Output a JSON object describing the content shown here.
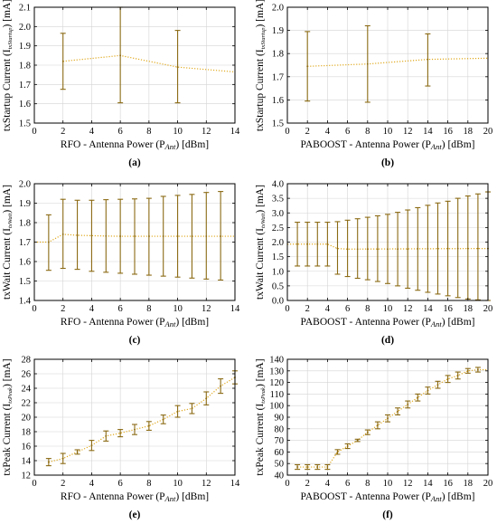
{
  "colors": {
    "series": "#8B6A14",
    "fit": "#E0A81C",
    "grid": "#d4d4d4",
    "frame": "#000000"
  },
  "chart_data": [
    {
      "type": "line",
      "panel_label": "(a)",
      "ylabel": "txStartup Current (I",
      "ylabel_sub": "txStartup",
      "ylabel_tail": ") [mA]",
      "xlabel": "RFO - Antenna Power (P",
      "xlabel_sub": "Ant",
      "xlabel_tail": ") [dBm]",
      "xlim": [
        0,
        14
      ],
      "xticks": [
        0,
        2,
        4,
        6,
        8,
        10,
        12,
        14
      ],
      "xticklabels": [
        "0",
        "2",
        "4",
        "6",
        "8",
        "10",
        "12",
        "14"
      ],
      "ylim": [
        1.5,
        2.1
      ],
      "yticks": [
        1.5,
        1.6,
        1.7,
        1.8,
        1.9,
        2.0,
        2.1
      ],
      "yticklabels": [
        "1.5",
        "1.6",
        "1.7",
        "1.8",
        "1.9",
        "2.0",
        "2.1"
      ],
      "grid": true,
      "series": [
        {
          "x": [
            2,
            6,
            10
          ],
          "y": [
            1.82,
            1.85,
            1.79
          ],
          "err_low": [
            1.675,
            1.605,
            1.605
          ],
          "err_high": [
            1.965,
            2.1,
            1.98
          ]
        }
      ],
      "trend": {
        "x": [
          2,
          6,
          10,
          14
        ],
        "y": [
          1.82,
          1.85,
          1.79,
          1.765
        ]
      }
    },
    {
      "type": "line",
      "panel_label": "(b)",
      "ylabel": "txStartup Current (I",
      "ylabel_sub": "txStartup",
      "ylabel_tail": ") [mA]",
      "xlabel": "PABOOST - Antenna Power (P",
      "xlabel_sub": "Ant",
      "xlabel_tail": ") [dBm]",
      "xlim": [
        0,
        20
      ],
      "xticks": [
        0,
        2,
        4,
        6,
        8,
        10,
        12,
        14,
        16,
        18,
        20
      ],
      "xticklabels": [
        "0",
        "2",
        "4",
        "6",
        "8",
        "10",
        "12",
        "14",
        "16",
        "18",
        "20"
      ],
      "ylim": [
        1.5,
        2.0
      ],
      "yticks": [
        1.5,
        1.6,
        1.7,
        1.8,
        1.9,
        2.0
      ],
      "yticklabels": [
        "1.5",
        "1.6",
        "1.7",
        "1.8",
        "1.9",
        "2.0"
      ],
      "grid": true,
      "series": [
        {
          "x": [
            2,
            8,
            14
          ],
          "y": [
            1.745,
            1.755,
            1.775
          ],
          "err_low": [
            1.595,
            1.59,
            1.66
          ],
          "err_high": [
            1.895,
            1.92,
            1.885
          ]
        }
      ],
      "trend": {
        "x": [
          2,
          8,
          14,
          20
        ],
        "y": [
          1.745,
          1.755,
          1.775,
          1.78
        ]
      }
    },
    {
      "type": "line",
      "panel_label": "(c)",
      "ylabel": "txWait Current (I",
      "ylabel_sub": "txWait",
      "ylabel_tail": ") [mA]",
      "xlabel": "RFO - Antenna Power (P",
      "xlabel_sub": "Ant",
      "xlabel_tail": ") [dBm]",
      "xlim": [
        0,
        14
      ],
      "xticks": [
        0,
        2,
        4,
        6,
        8,
        10,
        12,
        14
      ],
      "xticklabels": [
        "0",
        "2",
        "4",
        "6",
        "8",
        "10",
        "12",
        "14"
      ],
      "ylim": [
        1.4,
        2.0
      ],
      "yticks": [
        1.4,
        1.5,
        1.6,
        1.7,
        1.8,
        1.9,
        2.0
      ],
      "yticklabels": [
        "1.4",
        "1.5",
        "1.6",
        "1.7",
        "1.8",
        "1.9",
        "2.0"
      ],
      "grid": true,
      "series": [
        {
          "x": [
            1,
            2,
            3,
            4,
            5,
            6,
            7,
            8,
            9,
            10,
            11,
            12,
            13
          ],
          "y": [
            1.7,
            1.74,
            1.735,
            1.733,
            1.731,
            1.73,
            1.73,
            1.73,
            1.73,
            1.73,
            1.73,
            1.73,
            1.73
          ],
          "err_low": [
            1.555,
            1.565,
            1.56,
            1.55,
            1.545,
            1.54,
            1.535,
            1.53,
            1.525,
            1.52,
            1.515,
            1.51,
            1.505
          ],
          "err_high": [
            1.84,
            1.92,
            1.915,
            1.915,
            1.918,
            1.92,
            1.922,
            1.925,
            1.935,
            1.94,
            1.945,
            1.955,
            1.96
          ]
        }
      ],
      "trend": {
        "x": [
          0,
          1,
          2,
          3,
          4,
          5,
          6,
          7,
          8,
          9,
          10,
          11,
          12,
          13,
          14
        ],
        "y": [
          1.7,
          1.7,
          1.74,
          1.735,
          1.733,
          1.731,
          1.73,
          1.73,
          1.73,
          1.73,
          1.73,
          1.73,
          1.73,
          1.73,
          1.73
        ]
      }
    },
    {
      "type": "line",
      "panel_label": "(d)",
      "ylabel": "txWait Current (I",
      "ylabel_sub": "txWait",
      "ylabel_tail": ") [mA]",
      "xlabel": "PABOOST - Antenna Power (P",
      "xlabel_sub": "Ant",
      "xlabel_tail": ") [dBm]",
      "xlim": [
        0,
        20
      ],
      "xticks": [
        0,
        2,
        4,
        6,
        8,
        10,
        12,
        14,
        16,
        18,
        20
      ],
      "xticklabels": [
        "0",
        "2",
        "4",
        "6",
        "8",
        "10",
        "12",
        "14",
        "16",
        "18",
        "20"
      ],
      "ylim": [
        0.0,
        4.0
      ],
      "yticks": [
        0.0,
        0.5,
        1.0,
        1.5,
        2.0,
        2.5,
        3.0,
        3.5,
        4.0
      ],
      "yticklabels": [
        "0.0",
        "0.5",
        "1.0",
        "1.5",
        "2.0",
        "2.5",
        "3.0",
        "3.5",
        "4.0"
      ],
      "grid": true,
      "series": [
        {
          "x": [
            1,
            2,
            3,
            4,
            5,
            6,
            7,
            8,
            9,
            10,
            11,
            12,
            13,
            14,
            15,
            16,
            17,
            18,
            19,
            20
          ],
          "y": [
            1.93,
            1.93,
            1.93,
            1.93,
            1.78,
            1.76,
            1.76,
            1.76,
            1.76,
            1.76,
            1.76,
            1.76,
            1.77,
            1.77,
            1.78,
            1.78,
            1.78,
            1.78,
            1.78,
            1.78
          ],
          "err_low": [
            1.18,
            1.18,
            1.18,
            1.18,
            0.9,
            0.82,
            0.76,
            0.71,
            0.65,
            0.58,
            0.5,
            0.42,
            0.35,
            0.28,
            0.22,
            0.16,
            0.1,
            0.05,
            0.02,
            0.0
          ],
          "err_high": [
            2.68,
            2.68,
            2.68,
            2.68,
            2.7,
            2.75,
            2.8,
            2.85,
            2.9,
            2.95,
            3.02,
            3.1,
            3.18,
            3.26,
            3.34,
            3.4,
            3.5,
            3.58,
            3.65,
            3.72
          ]
        }
      ],
      "trend": {
        "x": [
          0,
          4,
          5,
          6,
          20
        ],
        "y": [
          1.93,
          1.93,
          1.78,
          1.76,
          1.78
        ]
      }
    },
    {
      "type": "line",
      "panel_label": "(e)",
      "ylabel": "txPeak Current (I",
      "ylabel_sub": "txPeak",
      "ylabel_tail": ") [mA]",
      "xlabel": "RFO - Antenna Power (P",
      "xlabel_sub": "Ant",
      "xlabel_tail": ") [dBm]",
      "xlim": [
        0,
        14
      ],
      "xticks": [
        0,
        2,
        4,
        6,
        8,
        10,
        12,
        14
      ],
      "xticklabels": [
        "0",
        "2",
        "4",
        "6",
        "8",
        "10",
        "12",
        "14"
      ],
      "ylim": [
        12,
        28
      ],
      "yticks": [
        12,
        14,
        16,
        18,
        20,
        22,
        24,
        26,
        28
      ],
      "yticklabels": [
        "12",
        "14",
        "16",
        "18",
        "20",
        "22",
        "24",
        "26",
        "28"
      ],
      "grid": true,
      "series": [
        {
          "x": [
            1,
            2,
            3,
            4,
            5,
            6,
            7,
            8,
            9,
            10,
            11,
            12,
            13,
            14
          ],
          "y": [
            13.8,
            14.3,
            15.2,
            16.1,
            17.4,
            17.8,
            18.3,
            18.8,
            19.7,
            20.8,
            21.2,
            22.6,
            24.3,
            25.5
          ],
          "err_low": [
            13.3,
            13.6,
            14.9,
            15.4,
            16.7,
            17.3,
            17.6,
            18.2,
            19.1,
            20.0,
            20.5,
            21.7,
            23.3,
            24.6
          ],
          "err_high": [
            14.3,
            15.0,
            15.5,
            16.8,
            18.1,
            18.3,
            19.0,
            19.4,
            20.3,
            21.6,
            21.9,
            23.5,
            25.3,
            26.4
          ]
        }
      ],
      "trend": {
        "x": [
          1,
          2,
          3,
          4,
          5,
          6,
          7,
          8,
          9,
          10,
          11,
          12,
          13,
          14
        ],
        "y": [
          13.8,
          14.3,
          15.2,
          16.1,
          17.4,
          17.8,
          18.3,
          18.8,
          19.7,
          20.8,
          21.2,
          22.6,
          24.3,
          25.5
        ]
      }
    },
    {
      "type": "line",
      "panel_label": "(f)",
      "ylabel": "txPeak Current (I",
      "ylabel_sub": "txPeak",
      "ylabel_tail": ") [mA]",
      "xlabel": "PABOOST - Antenna Power (P",
      "xlabel_sub": "Ant",
      "xlabel_tail": ") [dBm]",
      "xlim": [
        0,
        20
      ],
      "xticks": [
        0,
        2,
        4,
        6,
        8,
        10,
        12,
        14,
        16,
        18,
        20
      ],
      "xticklabels": [
        "0",
        "2",
        "4",
        "6",
        "8",
        "10",
        "12",
        "14",
        "16",
        "18",
        "20"
      ],
      "ylim": [
        40,
        140
      ],
      "yticks": [
        40,
        50,
        60,
        70,
        80,
        90,
        100,
        110,
        120,
        130,
        140
      ],
      "yticklabels": [
        "40",
        "50",
        "60",
        "70",
        "80",
        "90",
        "100",
        "110",
        "120",
        "130",
        "140"
      ],
      "grid": true,
      "series": [
        {
          "x": [
            1,
            2,
            3,
            4,
            5,
            6,
            7,
            8,
            9,
            10,
            11,
            12,
            13,
            14,
            15,
            16,
            17,
            18,
            19
          ],
          "y": [
            47,
            47,
            47,
            47,
            60,
            65,
            70,
            77,
            83,
            89,
            95,
            101,
            107,
            113,
            118,
            123,
            126,
            130,
            131
          ],
          "err_low": [
            45,
            45,
            45,
            45,
            58,
            63,
            69,
            75,
            80,
            86,
            92,
            98,
            104,
            110,
            115,
            120,
            123,
            128,
            129
          ],
          "err_high": [
            49,
            49,
            49,
            49,
            62,
            67,
            71,
            79,
            86,
            92,
            98,
            104,
            110,
            116,
            121,
            126,
            129,
            132,
            133
          ]
        }
      ],
      "trend": {
        "x": [
          1,
          2,
          3,
          4,
          5,
          6,
          7,
          8,
          9,
          10,
          11,
          12,
          13,
          14,
          15,
          16,
          17,
          18,
          19,
          20
        ],
        "y": [
          47,
          47,
          47,
          47,
          60,
          65,
          70,
          77,
          83,
          89,
          95,
          101,
          107,
          113,
          118,
          123,
          126,
          130,
          131,
          131
        ]
      }
    }
  ]
}
